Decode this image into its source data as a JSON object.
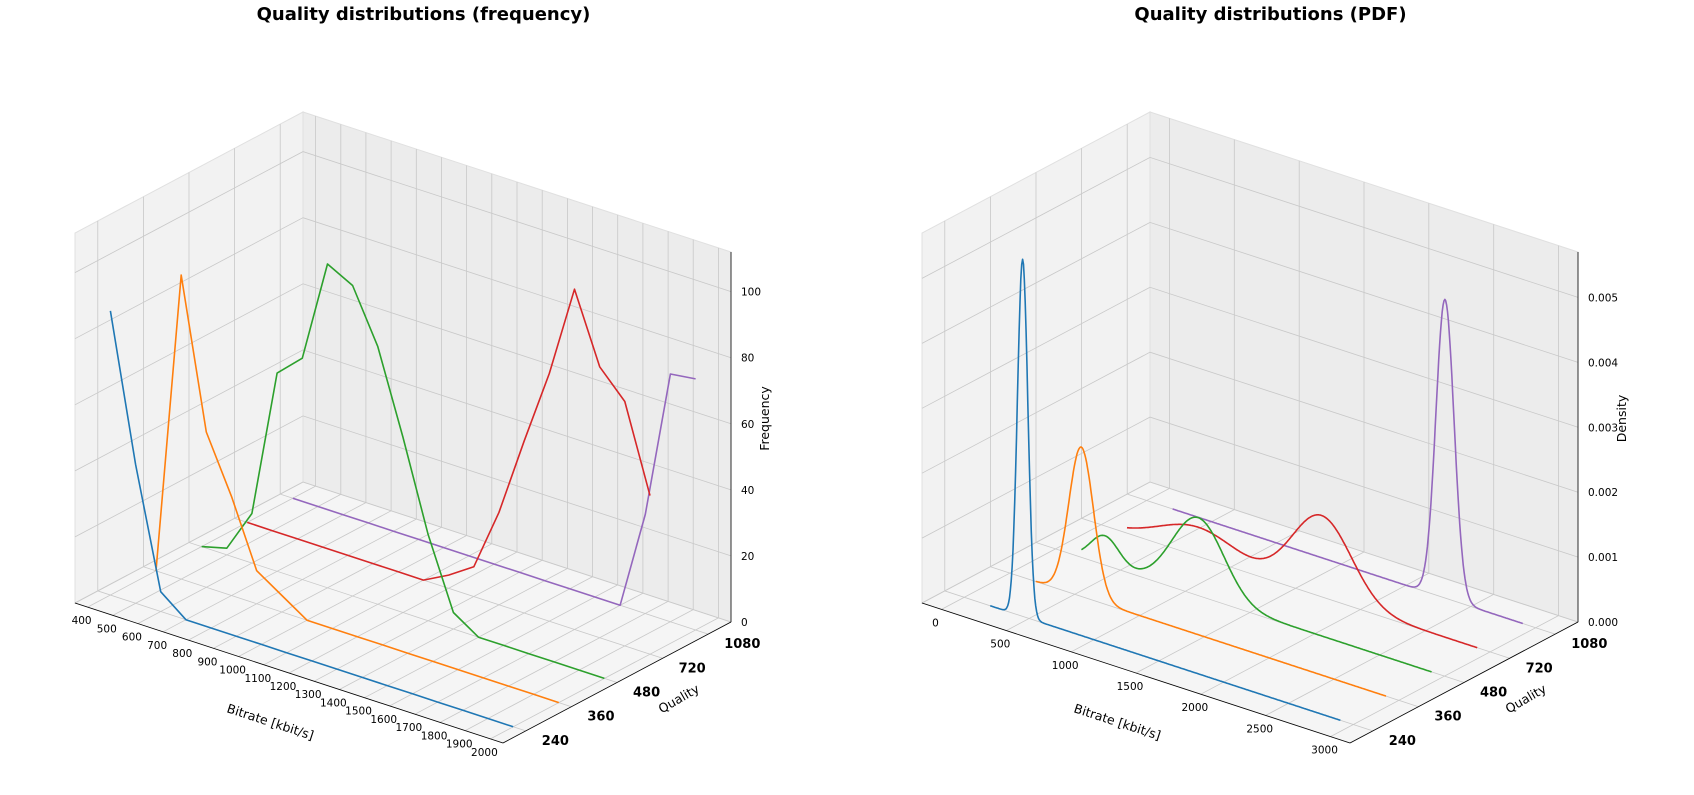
{
  "chart_data": [
    {
      "type": "line",
      "title": "Quality distributions (frequency)",
      "xlabel": "Bitrate [kbit/s]",
      "ylabel": "Quality",
      "zlabel": "Frequency",
      "x_ticks": [
        400,
        500,
        600,
        700,
        800,
        900,
        1000,
        1100,
        1200,
        1300,
        1400,
        1500,
        1600,
        1700,
        1800,
        1900,
        2000
      ],
      "y_ticks": [
        "240",
        "360",
        "480",
        "720",
        "1080"
      ],
      "z_ticks": [
        0,
        20,
        40,
        60,
        80,
        100
      ],
      "xlim": [
        350,
        2050
      ],
      "zlim": [
        0,
        112
      ],
      "grid": true,
      "series": [
        {
          "quality": "240",
          "color": "#1f77b4",
          "x": [
            400,
            500,
            600,
            700,
            800,
            900,
            1000,
            1100,
            1200,
            1300,
            1400,
            1500,
            1600,
            1700,
            1800,
            1900,
            2000
          ],
          "values": [
            86,
            42,
            6,
            0,
            0,
            0,
            0,
            0,
            0,
            0,
            0,
            0,
            0,
            0,
            0,
            0,
            0
          ]
        },
        {
          "quality": "360",
          "color": "#ff7f0e",
          "x": [
            400,
            500,
            600,
            700,
            800,
            900,
            1000,
            1100,
            1200,
            1300,
            1400,
            1500,
            1600,
            1700,
            1800,
            1900,
            2000
          ],
          "values": [
            0,
            92,
            47,
            30,
            10,
            5,
            0,
            0,
            0,
            0,
            0,
            0,
            0,
            0,
            0,
            0,
            0
          ]
        },
        {
          "quality": "480",
          "color": "#2ca02c",
          "x": [
            400,
            500,
            600,
            700,
            800,
            900,
            1000,
            1100,
            1200,
            1300,
            1400,
            1500,
            1600,
            1700,
            1800,
            1900,
            2000
          ],
          "values": [
            0,
            2,
            15,
            60,
            67,
            98,
            94,
            78,
            53,
            26,
            5,
            0,
            0,
            0,
            0,
            0,
            0
          ]
        },
        {
          "quality": "720",
          "color": "#d62728",
          "x": [
            400,
            500,
            600,
            700,
            800,
            900,
            1000,
            1100,
            1200,
            1300,
            1400,
            1500,
            1600,
            1700,
            1800,
            1900,
            2000
          ],
          "values": [
            0,
            0,
            0,
            0,
            0,
            0,
            0,
            0,
            4,
            9,
            28,
            52,
            75,
            103,
            82,
            74,
            48
          ]
        },
        {
          "quality": "1080",
          "color": "#9467bd",
          "x": [
            400,
            500,
            600,
            700,
            800,
            900,
            1000,
            1100,
            1200,
            1300,
            1400,
            1500,
            1600,
            1700,
            1800,
            1900,
            2000
          ],
          "values": [
            0,
            0,
            0,
            0,
            0,
            0,
            0,
            0,
            0,
            0,
            0,
            0,
            0,
            0,
            30,
            75,
            76
          ]
        }
      ]
    },
    {
      "type": "line",
      "title": "Quality distributions (PDF)",
      "xlabel": "Bitrate [kbit/s]",
      "ylabel": "Quality",
      "zlabel": "Density",
      "x_ticks": [
        0,
        500,
        1000,
        1500,
        2000,
        2500,
        3000
      ],
      "y_ticks": [
        "240",
        "360",
        "480",
        "720",
        "1080"
      ],
      "z_ticks": [
        "0.000",
        "0.001",
        "0.002",
        "0.003",
        "0.004",
        "0.005"
      ],
      "xlim": [
        -150,
        3150
      ],
      "zlim": [
        0,
        0.0057
      ],
      "grid": true,
      "series": [
        {
          "quality": "240",
          "color": "#1f77b4",
          "x_range": [
            200,
            2900
          ],
          "peaks": [
            {
              "center": 450,
              "sigma": 40,
              "height": 0.0055
            }
          ]
        },
        {
          "quality": "360",
          "color": "#ff7f0e",
          "x_range": [
            200,
            2900
          ],
          "peaks": [
            {
              "center": 550,
              "sigma": 95,
              "height": 0.0023
            }
          ]
        },
        {
          "quality": "480",
          "color": "#2ca02c",
          "x_range": [
            200,
            2900
          ],
          "peaks": [
            {
              "center": 380,
              "sigma": 110,
              "height": 0.00045
            },
            {
              "center": 1100,
              "sigma": 200,
              "height": 0.0012
            }
          ]
        },
        {
          "quality": "720",
          "color": "#d62728",
          "x_range": [
            200,
            2900
          ],
          "peaks": [
            {
              "center": 750,
              "sigma": 300,
              "height": 0.00045
            },
            {
              "center": 1700,
              "sigma": 230,
              "height": 0.00125
            }
          ]
        },
        {
          "quality": "1080",
          "color": "#9467bd",
          "x_range": [
            200,
            2900
          ],
          "peaks": [
            {
              "center": 2300,
              "sigma": 70,
              "height": 0.0046
            }
          ]
        }
      ]
    }
  ]
}
